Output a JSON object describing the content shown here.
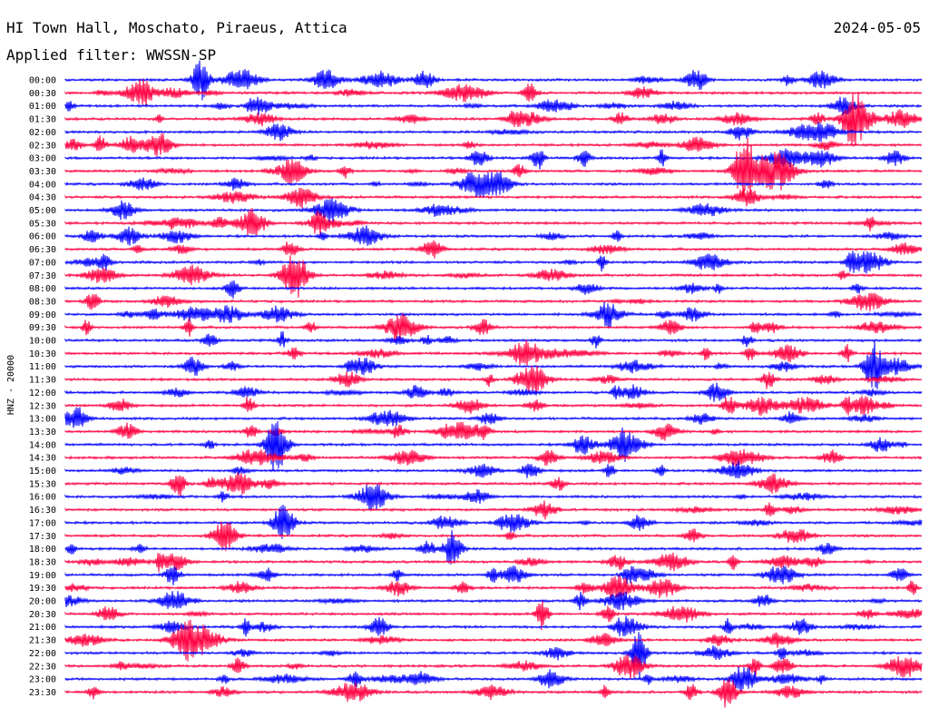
{
  "header": {
    "station": "HI Town Hall, Moschato, Piraeus, Attica",
    "date": "2024-05-05",
    "filter": "Applied filter: WWSSN-SP"
  },
  "chart_data": {
    "type": "line",
    "title": "HI Town Hall, Moschato, Piraeus, Attica",
    "ylabel": "HNZ - 20000",
    "row_labels": [
      "00:00",
      "00:30",
      "01:00",
      "01:30",
      "02:00",
      "02:30",
      "03:00",
      "03:30",
      "04:00",
      "04:30",
      "05:00",
      "05:30",
      "06:00",
      "06:30",
      "07:00",
      "07:30",
      "08:00",
      "08:30",
      "09:00",
      "09:30",
      "10:00",
      "10:30",
      "11:00",
      "11:30",
      "12:00",
      "12:30",
      "13:00",
      "13:30",
      "14:00",
      "14:30",
      "15:00",
      "15:30",
      "16:00",
      "16:30",
      "17:00",
      "17:30",
      "18:00",
      "18:30",
      "19:00",
      "19:30",
      "20:00",
      "20:30",
      "21:00",
      "21:30",
      "22:00",
      "22:30",
      "23:00",
      "23:30"
    ],
    "colors": [
      "#0000ff",
      "#ff0040"
    ],
    "grid": false
  }
}
